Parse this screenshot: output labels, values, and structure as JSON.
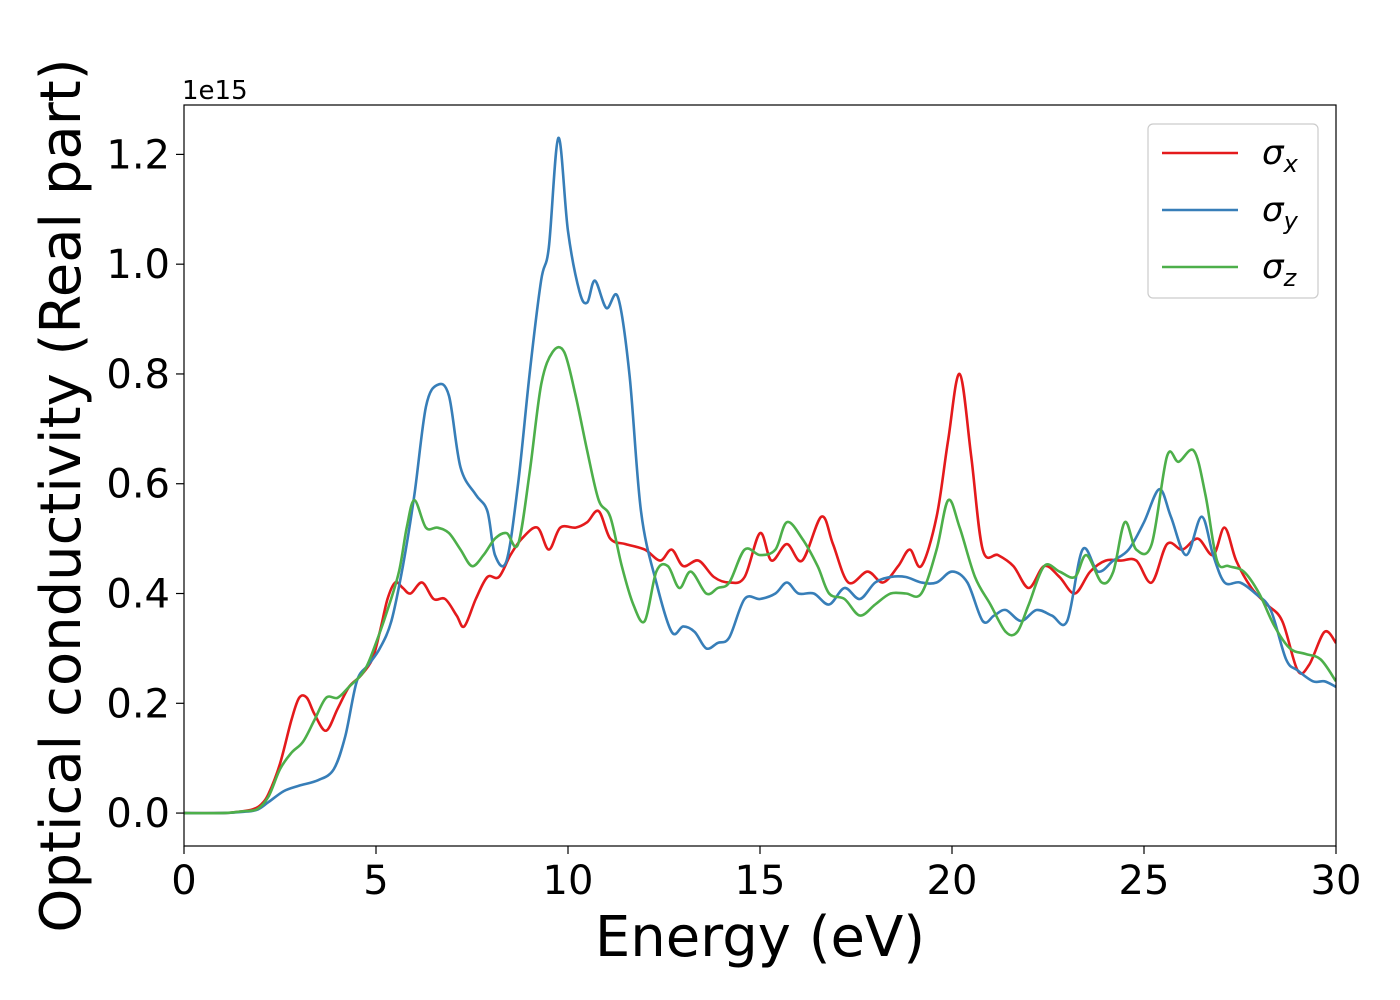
{
  "chart_data": {
    "type": "line",
    "title": "",
    "xlabel": "Energy (eV)",
    "ylabel": "Optical conductivity (Real part)",
    "y_offset_label": "1e15",
    "xlim": [
      0,
      30
    ],
    "ylim": [
      -0.06,
      1.29
    ],
    "x_ticks": [
      0,
      5,
      10,
      15,
      20,
      25,
      30
    ],
    "y_ticks": [
      0.0,
      0.2,
      0.4,
      0.6,
      0.8,
      1.0,
      1.2
    ],
    "x_tick_labels": [
      "0",
      "5",
      "10",
      "15",
      "20",
      "25",
      "30"
    ],
    "y_tick_labels": [
      "0.0",
      "0.2",
      "0.4",
      "0.6",
      "0.8",
      "1.0",
      "1.2"
    ],
    "grid": false,
    "legend_position": "top-right",
    "series": [
      {
        "name": "σx",
        "legend_symbol": "σ",
        "legend_sub": "x",
        "color": "#e41a1c",
        "points": [
          [
            0,
            0
          ],
          [
            1,
            0.0
          ],
          [
            1.5,
            0.003
          ],
          [
            1.8,
            0.007
          ],
          [
            2.0,
            0.015
          ],
          [
            2.2,
            0.035
          ],
          [
            2.5,
            0.09
          ],
          [
            2.8,
            0.17
          ],
          [
            3.0,
            0.21
          ],
          [
            3.2,
            0.21
          ],
          [
            3.4,
            0.18
          ],
          [
            3.7,
            0.15
          ],
          [
            4.0,
            0.19
          ],
          [
            4.3,
            0.23
          ],
          [
            4.6,
            0.25
          ],
          [
            4.9,
            0.28
          ],
          [
            5.1,
            0.33
          ],
          [
            5.3,
            0.39
          ],
          [
            5.5,
            0.42
          ],
          [
            5.7,
            0.41
          ],
          [
            5.9,
            0.4
          ],
          [
            6.2,
            0.42
          ],
          [
            6.5,
            0.39
          ],
          [
            6.8,
            0.39
          ],
          [
            7.1,
            0.36
          ],
          [
            7.3,
            0.34
          ],
          [
            7.6,
            0.39
          ],
          [
            7.9,
            0.43
          ],
          [
            8.2,
            0.43
          ],
          [
            8.5,
            0.47
          ],
          [
            8.8,
            0.5
          ],
          [
            9.2,
            0.52
          ],
          [
            9.5,
            0.48
          ],
          [
            9.8,
            0.52
          ],
          [
            10.2,
            0.52
          ],
          [
            10.5,
            0.53
          ],
          [
            10.8,
            0.55
          ],
          [
            11.1,
            0.5
          ],
          [
            11.5,
            0.49
          ],
          [
            12.0,
            0.48
          ],
          [
            12.4,
            0.46
          ],
          [
            12.7,
            0.48
          ],
          [
            13.0,
            0.45
          ],
          [
            13.4,
            0.46
          ],
          [
            13.8,
            0.43
          ],
          [
            14.2,
            0.42
          ],
          [
            14.6,
            0.43
          ],
          [
            15.0,
            0.51
          ],
          [
            15.3,
            0.46
          ],
          [
            15.7,
            0.49
          ],
          [
            16.1,
            0.46
          ],
          [
            16.6,
            0.54
          ],
          [
            16.9,
            0.49
          ],
          [
            17.3,
            0.42
          ],
          [
            17.8,
            0.44
          ],
          [
            18.2,
            0.42
          ],
          [
            18.6,
            0.45
          ],
          [
            18.9,
            0.48
          ],
          [
            19.2,
            0.45
          ],
          [
            19.6,
            0.54
          ],
          [
            19.9,
            0.68
          ],
          [
            20.2,
            0.8
          ],
          [
            20.5,
            0.65
          ],
          [
            20.8,
            0.48
          ],
          [
            21.2,
            0.47
          ],
          [
            21.6,
            0.45
          ],
          [
            22.0,
            0.41
          ],
          [
            22.4,
            0.45
          ],
          [
            22.8,
            0.43
          ],
          [
            23.2,
            0.4
          ],
          [
            23.6,
            0.44
          ],
          [
            24.0,
            0.46
          ],
          [
            24.4,
            0.46
          ],
          [
            24.8,
            0.46
          ],
          [
            25.2,
            0.42
          ],
          [
            25.6,
            0.49
          ],
          [
            26.0,
            0.48
          ],
          [
            26.4,
            0.5
          ],
          [
            26.8,
            0.47
          ],
          [
            27.1,
            0.52
          ],
          [
            27.4,
            0.46
          ],
          [
            27.8,
            0.41
          ],
          [
            28.2,
            0.38
          ],
          [
            28.6,
            0.35
          ],
          [
            29.0,
            0.26
          ],
          [
            29.3,
            0.27
          ],
          [
            29.7,
            0.33
          ],
          [
            30.0,
            0.31
          ]
        ]
      },
      {
        "name": "σy",
        "legend_symbol": "σ",
        "legend_sub": "y",
        "color": "#377eb8",
        "points": [
          [
            0,
            0
          ],
          [
            1,
            0.0
          ],
          [
            1.5,
            0.002
          ],
          [
            1.9,
            0.006
          ],
          [
            2.2,
            0.02
          ],
          [
            2.6,
            0.04
          ],
          [
            3.0,
            0.05
          ],
          [
            3.5,
            0.06
          ],
          [
            3.9,
            0.08
          ],
          [
            4.2,
            0.14
          ],
          [
            4.5,
            0.24
          ],
          [
            4.8,
            0.27
          ],
          [
            5.1,
            0.3
          ],
          [
            5.4,
            0.35
          ],
          [
            5.7,
            0.45
          ],
          [
            6.0,
            0.58
          ],
          [
            6.3,
            0.74
          ],
          [
            6.6,
            0.78
          ],
          [
            6.9,
            0.76
          ],
          [
            7.2,
            0.63
          ],
          [
            7.6,
            0.58
          ],
          [
            7.9,
            0.55
          ],
          [
            8.1,
            0.47
          ],
          [
            8.4,
            0.46
          ],
          [
            8.7,
            0.6
          ],
          [
            9.0,
            0.8
          ],
          [
            9.3,
            0.97
          ],
          [
            9.5,
            1.03
          ],
          [
            9.75,
            1.23
          ],
          [
            10.0,
            1.06
          ],
          [
            10.3,
            0.95
          ],
          [
            10.5,
            0.93
          ],
          [
            10.7,
            0.97
          ],
          [
            11.0,
            0.92
          ],
          [
            11.3,
            0.94
          ],
          [
            11.6,
            0.8
          ],
          [
            11.9,
            0.55
          ],
          [
            12.3,
            0.42
          ],
          [
            12.7,
            0.33
          ],
          [
            13.0,
            0.34
          ],
          [
            13.3,
            0.33
          ],
          [
            13.6,
            0.3
          ],
          [
            13.9,
            0.31
          ],
          [
            14.2,
            0.32
          ],
          [
            14.6,
            0.39
          ],
          [
            15.0,
            0.39
          ],
          [
            15.4,
            0.4
          ],
          [
            15.7,
            0.42
          ],
          [
            16.0,
            0.4
          ],
          [
            16.4,
            0.4
          ],
          [
            16.8,
            0.38
          ],
          [
            17.2,
            0.41
          ],
          [
            17.6,
            0.39
          ],
          [
            18.0,
            0.42
          ],
          [
            18.4,
            0.43
          ],
          [
            18.8,
            0.43
          ],
          [
            19.2,
            0.42
          ],
          [
            19.6,
            0.42
          ],
          [
            20.0,
            0.44
          ],
          [
            20.4,
            0.42
          ],
          [
            20.8,
            0.35
          ],
          [
            21.1,
            0.36
          ],
          [
            21.4,
            0.37
          ],
          [
            21.8,
            0.35
          ],
          [
            22.2,
            0.37
          ],
          [
            22.6,
            0.36
          ],
          [
            23.0,
            0.35
          ],
          [
            23.4,
            0.48
          ],
          [
            23.8,
            0.44
          ],
          [
            24.2,
            0.46
          ],
          [
            24.6,
            0.48
          ],
          [
            25.0,
            0.53
          ],
          [
            25.4,
            0.59
          ],
          [
            25.7,
            0.54
          ],
          [
            26.1,
            0.47
          ],
          [
            26.5,
            0.54
          ],
          [
            26.8,
            0.47
          ],
          [
            27.1,
            0.42
          ],
          [
            27.5,
            0.42
          ],
          [
            27.9,
            0.4
          ],
          [
            28.3,
            0.37
          ],
          [
            28.7,
            0.28
          ],
          [
            29.0,
            0.26
          ],
          [
            29.4,
            0.24
          ],
          [
            29.7,
            0.24
          ],
          [
            30.0,
            0.23
          ]
        ]
      },
      {
        "name": "σz",
        "legend_symbol": "σ",
        "legend_sub": "z",
        "color": "#4daf4a",
        "points": [
          [
            0,
            0
          ],
          [
            1,
            0.0
          ],
          [
            1.5,
            0.003
          ],
          [
            1.9,
            0.007
          ],
          [
            2.2,
            0.03
          ],
          [
            2.5,
            0.08
          ],
          [
            2.8,
            0.11
          ],
          [
            3.1,
            0.13
          ],
          [
            3.4,
            0.17
          ],
          [
            3.7,
            0.21
          ],
          [
            4.0,
            0.21
          ],
          [
            4.3,
            0.23
          ],
          [
            4.7,
            0.26
          ],
          [
            5.0,
            0.31
          ],
          [
            5.3,
            0.37
          ],
          [
            5.6,
            0.44
          ],
          [
            5.8,
            0.52
          ],
          [
            6.0,
            0.57
          ],
          [
            6.3,
            0.52
          ],
          [
            6.6,
            0.52
          ],
          [
            6.9,
            0.51
          ],
          [
            7.2,
            0.48
          ],
          [
            7.5,
            0.45
          ],
          [
            7.8,
            0.47
          ],
          [
            8.1,
            0.5
          ],
          [
            8.4,
            0.51
          ],
          [
            8.7,
            0.49
          ],
          [
            9.0,
            0.62
          ],
          [
            9.3,
            0.78
          ],
          [
            9.6,
            0.84
          ],
          [
            9.9,
            0.84
          ],
          [
            10.2,
            0.76
          ],
          [
            10.5,
            0.66
          ],
          [
            10.8,
            0.57
          ],
          [
            11.1,
            0.54
          ],
          [
            11.4,
            0.45
          ],
          [
            11.7,
            0.38
          ],
          [
            12.0,
            0.35
          ],
          [
            12.3,
            0.44
          ],
          [
            12.6,
            0.45
          ],
          [
            12.9,
            0.41
          ],
          [
            13.2,
            0.44
          ],
          [
            13.6,
            0.4
          ],
          [
            13.9,
            0.41
          ],
          [
            14.2,
            0.42
          ],
          [
            14.6,
            0.48
          ],
          [
            15.0,
            0.47
          ],
          [
            15.4,
            0.48
          ],
          [
            15.7,
            0.53
          ],
          [
            16.1,
            0.5
          ],
          [
            16.5,
            0.45
          ],
          [
            16.8,
            0.4
          ],
          [
            17.2,
            0.39
          ],
          [
            17.6,
            0.36
          ],
          [
            18.0,
            0.38
          ],
          [
            18.4,
            0.4
          ],
          [
            18.8,
            0.4
          ],
          [
            19.2,
            0.4
          ],
          [
            19.6,
            0.48
          ],
          [
            19.9,
            0.57
          ],
          [
            20.2,
            0.52
          ],
          [
            20.6,
            0.43
          ],
          [
            21.0,
            0.38
          ],
          [
            21.4,
            0.33
          ],
          [
            21.7,
            0.33
          ],
          [
            22.0,
            0.38
          ],
          [
            22.4,
            0.45
          ],
          [
            22.8,
            0.44
          ],
          [
            23.2,
            0.43
          ],
          [
            23.5,
            0.47
          ],
          [
            23.9,
            0.42
          ],
          [
            24.2,
            0.44
          ],
          [
            24.5,
            0.53
          ],
          [
            24.8,
            0.48
          ],
          [
            25.2,
            0.49
          ],
          [
            25.6,
            0.65
          ],
          [
            25.9,
            0.64
          ],
          [
            26.3,
            0.66
          ],
          [
            26.6,
            0.58
          ],
          [
            26.9,
            0.46
          ],
          [
            27.2,
            0.45
          ],
          [
            27.6,
            0.44
          ],
          [
            28.0,
            0.4
          ],
          [
            28.4,
            0.34
          ],
          [
            28.8,
            0.3
          ],
          [
            29.2,
            0.29
          ],
          [
            29.6,
            0.28
          ],
          [
            30.0,
            0.24
          ]
        ]
      }
    ]
  }
}
